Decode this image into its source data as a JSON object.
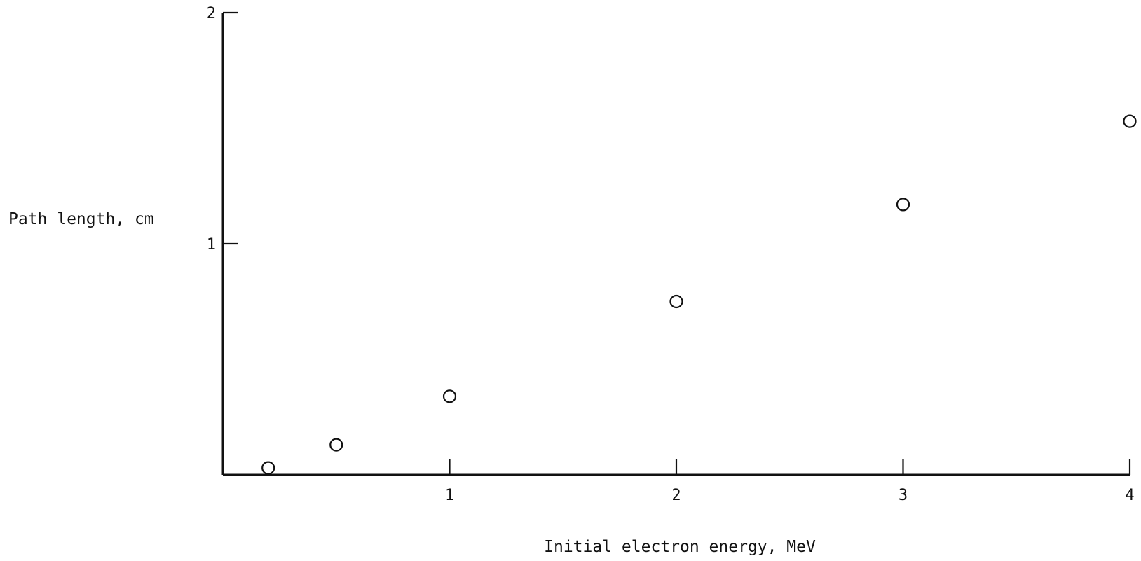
{
  "chart_data": {
    "type": "scatter",
    "title": "",
    "xlabel": "Initial electron energy, MeV",
    "ylabel": "Path length, cm",
    "xlim": [
      0,
      4
    ],
    "ylim": [
      0,
      2
    ],
    "x_ticks": [
      "1",
      "2",
      "3",
      "4"
    ],
    "y_ticks": [
      "1",
      "2"
    ],
    "grid": false,
    "marker": "open-circle",
    "series": [
      {
        "x": [
          0.2,
          0.5,
          1.0,
          2.0,
          3.0,
          4.0
        ],
        "y": [
          0.03,
          0.13,
          0.34,
          0.75,
          1.17,
          1.53
        ]
      }
    ]
  }
}
